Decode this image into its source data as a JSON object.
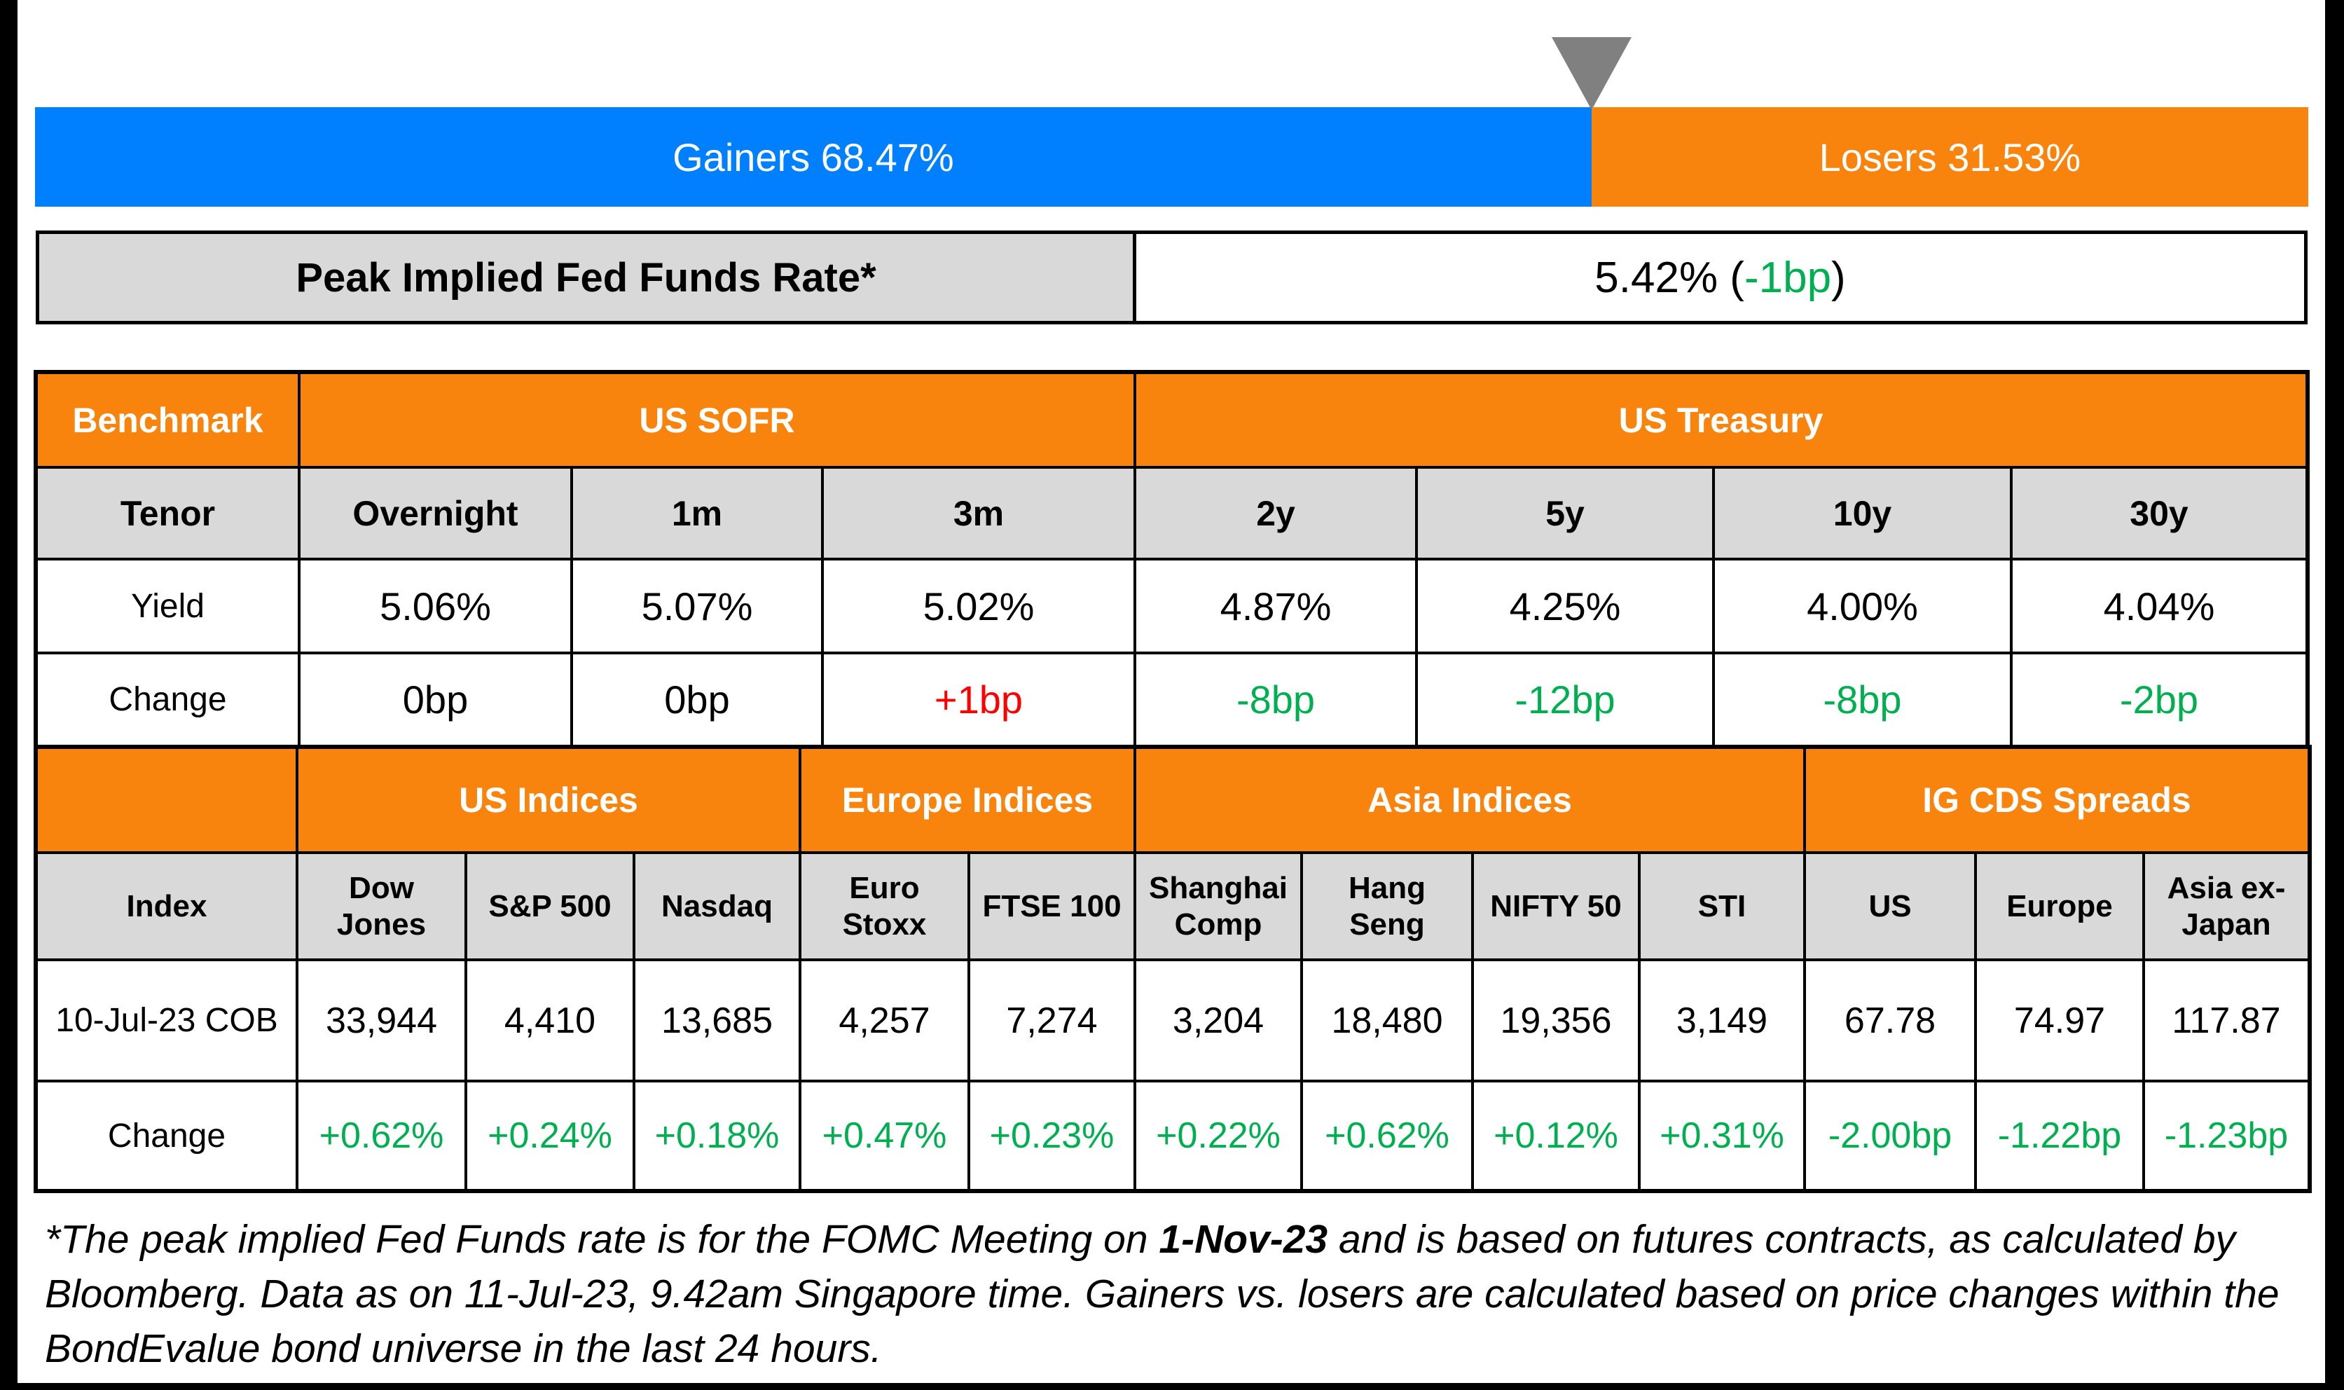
{
  "colors": {
    "blue": "#0080FE",
    "orange": "#F8840D",
    "gray": "#D9D9D9",
    "triangle_gray": "#808080",
    "green": "#00B050",
    "red": "#FF0000",
    "black": "#000000",
    "white": "#FFFFFF"
  },
  "gainers_losers_bar": {
    "gainers_label": "Gainers 68.47%",
    "losers_label": "Losers 31.53%",
    "gainers_pct": 68.47,
    "losers_pct": 31.53
  },
  "peak_rate": {
    "label": "Peak Implied Fed Funds Rate*",
    "value_open": "5.42% (",
    "value_change": "-1bp",
    "value_close": ")"
  },
  "benchmark_table": {
    "corner": "Benchmark",
    "group_sofr": "US SOFR",
    "group_treasury": "US Treasury",
    "tenor_label": "Tenor",
    "tenors": [
      "Overnight",
      "1m",
      "3m",
      "2y",
      "5y",
      "10y",
      "30y"
    ],
    "yield_label": "Yield",
    "yields": [
      "5.06%",
      "5.07%",
      "5.02%",
      "4.87%",
      "4.25%",
      "4.00%",
      "4.04%"
    ],
    "change_label": "Change",
    "changes": [
      {
        "text": "0bp",
        "color": "black"
      },
      {
        "text": "0bp",
        "color": "black"
      },
      {
        "text": "+1bp",
        "color": "red"
      },
      {
        "text": "-8bp",
        "color": "green"
      },
      {
        "text": "-12bp",
        "color": "green"
      },
      {
        "text": "-8bp",
        "color": "green"
      },
      {
        "text": "-2bp",
        "color": "green"
      }
    ]
  },
  "market_table": {
    "group_us": "US Indices",
    "group_europe": "Europe Indices",
    "group_asia": "Asia Indices",
    "group_cds": "IG CDS Spreads",
    "index_label": "Index",
    "index_names": [
      "Dow\nJones",
      "S&P 500",
      "Nasdaq",
      "Euro\nStoxx",
      "FTSE 100",
      "Shanghai\nComp",
      "Hang\nSeng",
      "NIFTY 50",
      "STI",
      "US",
      "Europe",
      "Asia ex-\nJapan"
    ],
    "date_label": "10-Jul-23 COB",
    "values": [
      "33,944",
      "4,410",
      "13,685",
      "4,257",
      "7,274",
      "3,204",
      "18,480",
      "19,356",
      "3,149",
      "67.78",
      "74.97",
      "117.87"
    ],
    "change_label": "Change",
    "changes": [
      {
        "text": "+0.62%",
        "color": "green"
      },
      {
        "text": "+0.24%",
        "color": "green"
      },
      {
        "text": "+0.18%",
        "color": "green"
      },
      {
        "text": "+0.47%",
        "color": "green"
      },
      {
        "text": "+0.23%",
        "color": "green"
      },
      {
        "text": "+0.22%",
        "color": "green"
      },
      {
        "text": "+0.62%",
        "color": "green"
      },
      {
        "text": "+0.12%",
        "color": "green"
      },
      {
        "text": "+0.31%",
        "color": "green"
      },
      {
        "text": "-2.00bp",
        "color": "green"
      },
      {
        "text": "-1.22bp",
        "color": "green"
      },
      {
        "text": "-1.23bp",
        "color": "green"
      }
    ]
  },
  "footnote": {
    "line1_pre": "*The peak implied Fed Funds rate is for the FOMC Meeting on ",
    "line1_bold": "1-Nov-23",
    "line1_post": " and is based on futures contracts, as calculated by",
    "line2": "Bloomberg. Data as on 11-Jul-23, 9.42am Singapore time. Gainers vs. losers are calculated based on price changes within the",
    "line3": "BondEvalue bond universe in the last 24 hours."
  },
  "chart_data": [
    {
      "type": "bar",
      "title": "Gainers vs Losers",
      "categories": [
        "Gainers",
        "Losers"
      ],
      "values": [
        68.47,
        31.53
      ],
      "unit": "%",
      "layout": "single stacked horizontal bar, blue=gainers, orange=losers, gray triangle marker at the split"
    },
    {
      "type": "table",
      "title": "Peak Implied Fed Funds Rate*",
      "rows": [
        [
          "Peak Implied Fed Funds Rate*",
          "5.42% (-1bp)"
        ]
      ]
    },
    {
      "type": "table",
      "title": "Benchmark rates",
      "columns": [
        "Benchmark",
        "Overnight",
        "1m",
        "3m",
        "2y",
        "5y",
        "10y",
        "30y"
      ],
      "groups": {
        "US SOFR": [
          "Overnight",
          "1m",
          "3m"
        ],
        "US Treasury": [
          "2y",
          "5y",
          "10y",
          "30y"
        ]
      },
      "rows": [
        [
          "Yield",
          "5.06%",
          "5.07%",
          "5.02%",
          "4.87%",
          "4.25%",
          "4.00%",
          "4.04%"
        ],
        [
          "Change",
          "0bp",
          "0bp",
          "+1bp",
          "-8bp",
          "-12bp",
          "-8bp",
          "-2bp"
        ]
      ]
    },
    {
      "type": "table",
      "title": "Indices and IG CDS spreads",
      "columns": [
        "Index",
        "Dow Jones",
        "S&P 500",
        "Nasdaq",
        "Euro Stoxx",
        "FTSE 100",
        "Shanghai Comp",
        "Hang Seng",
        "NIFTY 50",
        "STI",
        "US",
        "Europe",
        "Asia ex-Japan"
      ],
      "groups": {
        "US Indices": [
          "Dow Jones",
          "S&P 500",
          "Nasdaq"
        ],
        "Europe Indices": [
          "Euro Stoxx",
          "FTSE 100"
        ],
        "Asia Indices": [
          "Shanghai Comp",
          "Hang Seng",
          "NIFTY 50",
          "STI"
        ],
        "IG CDS Spreads": [
          "US",
          "Europe",
          "Asia ex-Japan"
        ]
      },
      "rows": [
        [
          "10-Jul-23 COB",
          "33,944",
          "4,410",
          "13,685",
          "4,257",
          "7,274",
          "3,204",
          "18,480",
          "19,356",
          "3,149",
          "67.78",
          "74.97",
          "117.87"
        ],
        [
          "Change",
          "+0.62%",
          "+0.24%",
          "+0.18%",
          "+0.47%",
          "+0.23%",
          "+0.22%",
          "+0.62%",
          "+0.12%",
          "+0.31%",
          "-2.00bp",
          "-1.22bp",
          "-1.23bp"
        ]
      ]
    }
  ]
}
